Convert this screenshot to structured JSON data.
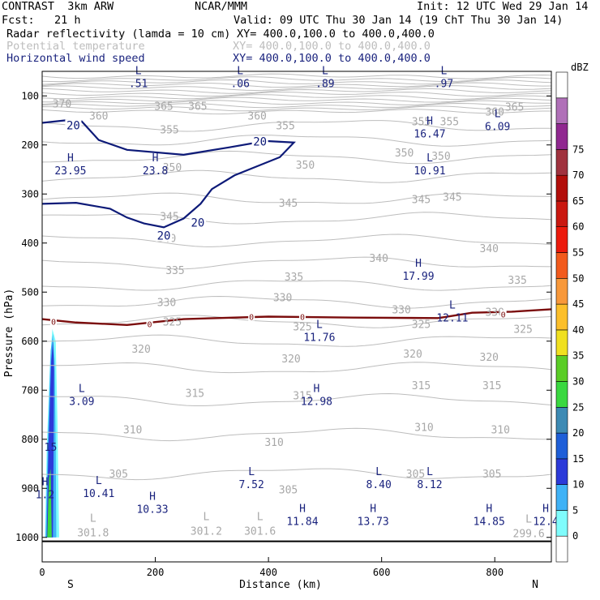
{
  "header": {
    "model": "CONTRAST  3km ARW",
    "org": "NCAR/MMM",
    "init": "Init: 12 UTC Wed 29 Jan 14",
    "fcst": "Fcst:   21 h",
    "valid": "Valid: 09 UTC Thu 30 Jan 14 (19 ChT Thu 30 Jan 14)",
    "fields": [
      {
        "name": "Radar reflectivity (lamda = 10 cm)",
        "xy": "XY= 400.0,100.0 to 400.0,400.0"
      },
      {
        "name": "Potential temperature",
        "xy": "XY= 400.0,100.0 to 400.0,400.0"
      },
      {
        "name": "Horizontal wind speed",
        "xy": "XY= 400.0,100.0 to 400.0,400.0"
      }
    ]
  },
  "chart_data": {
    "type": "cross-section",
    "xlabel": "Distance (km)",
    "ylabel": "Pressure (hPa)",
    "xlim": [
      0,
      900
    ],
    "ylim": [
      1050,
      50
    ],
    "x_ticks": [
      0,
      200,
      400,
      600,
      800
    ],
    "y_ticks": [
      100,
      200,
      300,
      400,
      500,
      600,
      700,
      800,
      900,
      1000
    ],
    "x_end_labels": {
      "left": "S",
      "right": "N"
    },
    "colorbar": {
      "unit": "dBZ",
      "levels": [
        0,
        5,
        10,
        15,
        20,
        25,
        30,
        35,
        40,
        45,
        50,
        55,
        60,
        65,
        70,
        75
      ],
      "colors": [
        "#ffffff",
        "#7ffcfc",
        "#3fb2f6",
        "#2c3ad9",
        "#1e5ed8",
        "#3d8ab4",
        "#3ad840",
        "#5acd26",
        "#f0e020",
        "#fcbf2a",
        "#f8983a",
        "#f25a1c",
        "#ec1a0c",
        "#ca1810",
        "#b20e0a",
        "#a0323e",
        "#902890",
        "#b070b8",
        "#ffffff"
      ]
    },
    "theta_labels": [
      {
        "x": 35,
        "p": 115,
        "v": "370"
      },
      {
        "x": 100,
        "p": 140,
        "v": "360"
      },
      {
        "x": 215,
        "p": 120,
        "v": "365"
      },
      {
        "x": 275,
        "p": 120,
        "v": "365"
      },
      {
        "x": 380,
        "p": 140,
        "v": "360"
      },
      {
        "x": 225,
        "p": 168,
        "v": "355"
      },
      {
        "x": 430,
        "p": 160,
        "v": "355"
      },
      {
        "x": 670,
        "p": 152,
        "v": "355"
      },
      {
        "x": 720,
        "p": 152,
        "v": "355"
      },
      {
        "x": 800,
        "p": 132,
        "v": "360"
      },
      {
        "x": 835,
        "p": 122,
        "v": "365"
      },
      {
        "x": 640,
        "p": 215,
        "v": "350"
      },
      {
        "x": 705,
        "p": 222,
        "v": "350"
      },
      {
        "x": 465,
        "p": 240,
        "v": "350"
      },
      {
        "x": 230,
        "p": 245,
        "v": "350"
      },
      {
        "x": 225,
        "p": 345,
        "v": "345"
      },
      {
        "x": 435,
        "p": 318,
        "v": "345"
      },
      {
        "x": 670,
        "p": 310,
        "v": "345"
      },
      {
        "x": 725,
        "p": 305,
        "v": "345"
      },
      {
        "x": 220,
        "p": 390,
        "v": "340"
      },
      {
        "x": 595,
        "p": 430,
        "v": "340"
      },
      {
        "x": 790,
        "p": 410,
        "v": "340"
      },
      {
        "x": 235,
        "p": 455,
        "v": "335"
      },
      {
        "x": 445,
        "p": 468,
        "v": "335"
      },
      {
        "x": 840,
        "p": 475,
        "v": "335"
      },
      {
        "x": 220,
        "p": 520,
        "v": "330"
      },
      {
        "x": 425,
        "p": 510,
        "v": "330"
      },
      {
        "x": 635,
        "p": 535,
        "v": "330"
      },
      {
        "x": 800,
        "p": 540,
        "v": "330"
      },
      {
        "x": 230,
        "p": 560,
        "v": "325"
      },
      {
        "x": 460,
        "p": 570,
        "v": "325"
      },
      {
        "x": 670,
        "p": 565,
        "v": "325"
      },
      {
        "x": 850,
        "p": 575,
        "v": "325"
      },
      {
        "x": 175,
        "p": 615,
        "v": "320"
      },
      {
        "x": 440,
        "p": 635,
        "v": "320"
      },
      {
        "x": 655,
        "p": 625,
        "v": "320"
      },
      {
        "x": 790,
        "p": 632,
        "v": "320"
      },
      {
        "x": 270,
        "p": 705,
        "v": "315"
      },
      {
        "x": 460,
        "p": 710,
        "v": "315"
      },
      {
        "x": 670,
        "p": 690,
        "v": "315"
      },
      {
        "x": 795,
        "p": 690,
        "v": "315"
      },
      {
        "x": 160,
        "p": 780,
        "v": "310"
      },
      {
        "x": 410,
        "p": 805,
        "v": "310"
      },
      {
        "x": 675,
        "p": 775,
        "v": "310"
      },
      {
        "x": 810,
        "p": 780,
        "v": "310"
      },
      {
        "x": 135,
        "p": 870,
        "v": "305"
      },
      {
        "x": 435,
        "p": 902,
        "v": "305"
      },
      {
        "x": 660,
        "p": 870,
        "v": "305"
      },
      {
        "x": 795,
        "p": 870,
        "v": "305"
      }
    ],
    "theta_min_labels": [
      {
        "x": 90,
        "p": 988,
        "v": "301.8"
      },
      {
        "x": 290,
        "p": 985,
        "v": "301.2"
      },
      {
        "x": 385,
        "p": 985,
        "v": "301.6"
      },
      {
        "x": 860,
        "p": 990,
        "v": "299.6"
      }
    ],
    "wind_contours": [
      {
        "v": "20",
        "labels": [
          {
            "x": 55,
            "p": 160
          },
          {
            "x": 385,
            "p": 193
          },
          {
            "x": 275,
            "p": 358
          },
          {
            "x": 215,
            "p": 385
          }
        ]
      },
      {
        "v": "0",
        "labels": [
          {
            "x": 20,
            "p": 560
          },
          {
            "x": 190,
            "p": 565
          },
          {
            "x": 370,
            "p": 550
          },
          {
            "x": 460,
            "p": 550
          },
          {
            "x": 815,
            "p": 545
          }
        ]
      }
    ],
    "extrema": [
      {
        "x": 170,
        "p": 62,
        "t": "L",
        "v": ".51"
      },
      {
        "x": 350,
        "p": 62,
        "t": "L",
        "v": ".06"
      },
      {
        "x": 500,
        "p": 62,
        "t": "L",
        "v": ".89"
      },
      {
        "x": 710,
        "p": 62,
        "t": "L",
        "v": ".97"
      },
      {
        "x": 685,
        "p": 165,
        "t": "H",
        "v": "16.47"
      },
      {
        "x": 805,
        "p": 150,
        "t": "L",
        "v": "6.09"
      },
      {
        "x": 50,
        "p": 240,
        "t": "H",
        "v": "23.95"
      },
      {
        "x": 200,
        "p": 240,
        "t": "H",
        "v": "23.8"
      },
      {
        "x": 685,
        "p": 240,
        "t": "L",
        "v": "10.91"
      },
      {
        "x": 665,
        "p": 455,
        "t": "H",
        "v": "17.99"
      },
      {
        "x": 725,
        "p": 540,
        "t": "L",
        "v": "12.11"
      },
      {
        "x": 490,
        "p": 580,
        "t": "L",
        "v": "11.76"
      },
      {
        "x": 70,
        "p": 710,
        "t": "L",
        "v": "3.09"
      },
      {
        "x": 485,
        "p": 710,
        "t": "H",
        "v": "12.98"
      },
      {
        "x": 5,
        "p": 900,
        "t": "H",
        "v": "1.2"
      },
      {
        "x": 100,
        "p": 898,
        "t": "L",
        "v": "10.41"
      },
      {
        "x": 370,
        "p": 880,
        "t": "L",
        "v": "7.52"
      },
      {
        "x": 595,
        "p": 880,
        "t": "L",
        "v": "8.40"
      },
      {
        "x": 685,
        "p": 880,
        "t": "L",
        "v": "8.12"
      },
      {
        "x": 195,
        "p": 930,
        "t": "H",
        "v": "10.33"
      },
      {
        "x": 460,
        "p": 955,
        "t": "H",
        "v": "11.84"
      },
      {
        "x": 585,
        "p": 955,
        "t": "H",
        "v": "13.73"
      },
      {
        "x": 790,
        "p": 955,
        "t": "H",
        "v": "14.85"
      },
      {
        "x": 890,
        "p": 955,
        "t": "H",
        "v": "12.4"
      }
    ],
    "reflectivity_label": {
      "x": 15,
      "p": 815,
      "v": "15"
    }
  }
}
